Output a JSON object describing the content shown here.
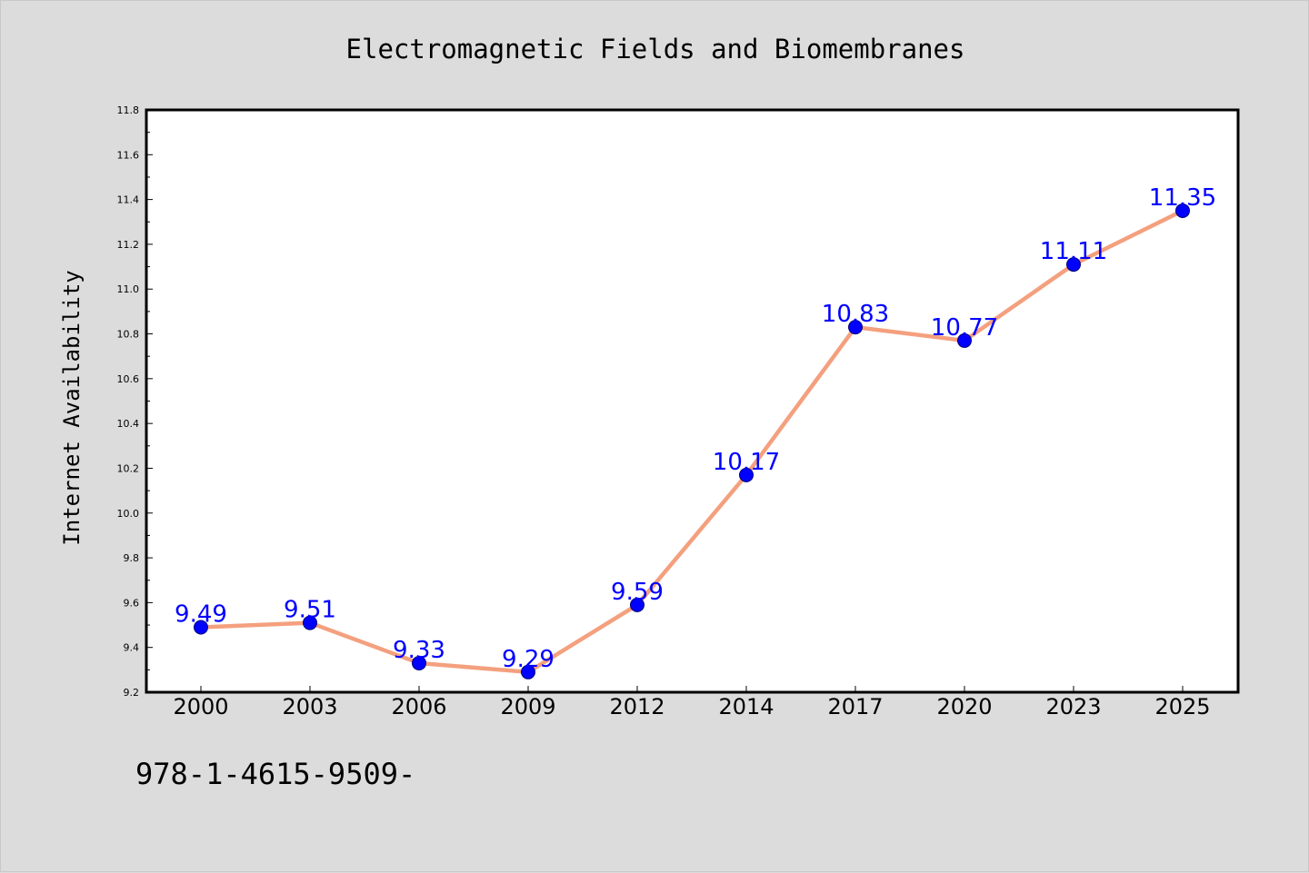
{
  "chart_data": {
    "type": "line",
    "title": "Electromagnetic Fields and Biomembranes",
    "xlabel": "",
    "ylabel": "Internet Availability",
    "categories": [
      "2000",
      "2003",
      "2006",
      "2009",
      "2012",
      "2014",
      "2017",
      "2020",
      "2023",
      "2025"
    ],
    "series": [
      {
        "values": [
          9.49,
          9.51,
          9.33,
          9.29,
          9.59,
          10.17,
          10.83,
          10.77,
          11.11,
          11.35
        ]
      }
    ],
    "data_labels": [
      "9.49",
      "9.51",
      "9.33",
      "9.29",
      "9.59",
      "10.17",
      "10.83",
      "10.77",
      "11.11",
      "11.35"
    ],
    "y_ticks": [
      "9.2",
      "9.4",
      "9.6",
      "9.8",
      "10.0",
      "10.2",
      "10.4",
      "10.6",
      "10.8",
      "11.0",
      "11.2",
      "11.4",
      "11.6",
      "11.8"
    ],
    "ylim": [
      9.2,
      11.8
    ],
    "grid": false,
    "legend": "none",
    "colors": {
      "line": "#f4a07e",
      "marker": "#0000ff",
      "data_label": "#0000ff",
      "frame": "#000000"
    }
  },
  "footer": {
    "code": "978-1-4615-9509-"
  }
}
